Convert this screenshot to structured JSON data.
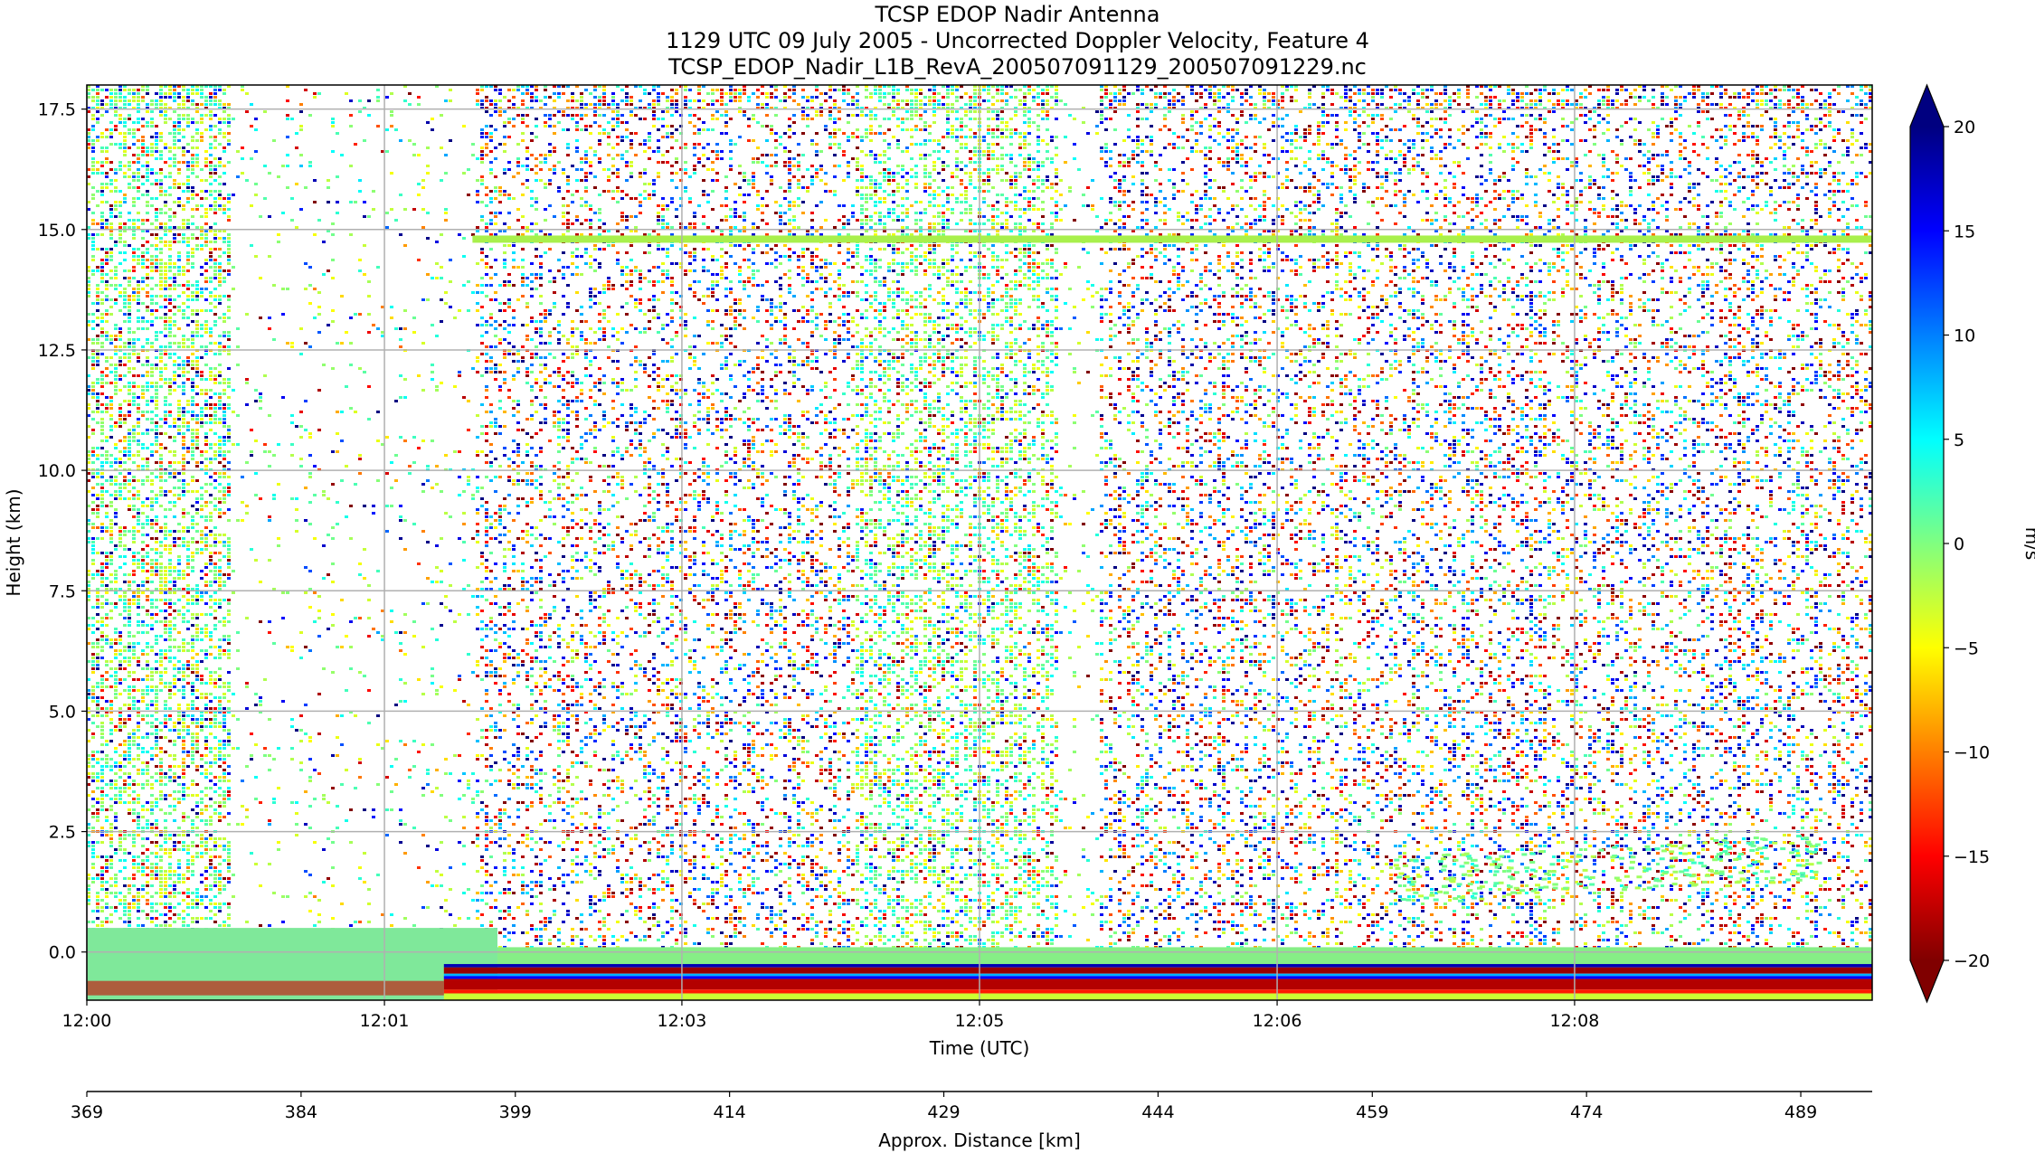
{
  "chart_data": {
    "type": "heatmap",
    "title": [
      "TCSP EDOP Nadir Antenna",
      "1129 UTC 09 July 2005 - Uncorrected Doppler Velocity, Feature 4",
      "TCSP_EDOP_Nadir_L1B_RevA_200507091129_200507091229.nc"
    ],
    "xlabel": "Time (UTC)",
    "ylabel": "Height (km)",
    "secondary_xlabel": "Approx. Distance [km]",
    "colorbar_label": "m/s",
    "x_ticks": [
      "12:00",
      "12:01",
      "12:03",
      "12:05",
      "12:06",
      "12:08"
    ],
    "x_tick_fracs": [
      0.0,
      0.1667,
      0.3333,
      0.5,
      0.6667,
      0.8333
    ],
    "distance_ticks": [
      "369",
      "384",
      "399",
      "414",
      "429",
      "444",
      "459",
      "474",
      "489"
    ],
    "distance_range": [
      369,
      494
    ],
    "y_ticks": [
      "0.0",
      "2.5",
      "5.0",
      "7.5",
      "10.0",
      "12.5",
      "15.0",
      "17.5"
    ],
    "y_tick_values": [
      0.0,
      2.5,
      5.0,
      7.5,
      10.0,
      12.5,
      15.0,
      17.5
    ],
    "ylim": [
      -1.0,
      18.0
    ],
    "colorbar_ticks": [
      "20",
      "15",
      "10",
      "5",
      "0",
      "−5",
      "−10",
      "−15",
      "−20"
    ],
    "colorbar_values": [
      20,
      15,
      10,
      5,
      0,
      -5,
      -10,
      -15,
      -20
    ],
    "clim": [
      -20,
      20
    ],
    "colormap": "jet",
    "colorbar_extend": "both",
    "grid": true,
    "features": {
      "clear_gaps_fraction": [
        [
          0.081,
          0.216
        ],
        [
          0.543,
          0.565
        ]
      ],
      "noise_band_top_km": 17.5,
      "tropopause_echo_km": 14.8,
      "surface_echo_km": -0.4,
      "low_echo_km": 1.5
    }
  }
}
